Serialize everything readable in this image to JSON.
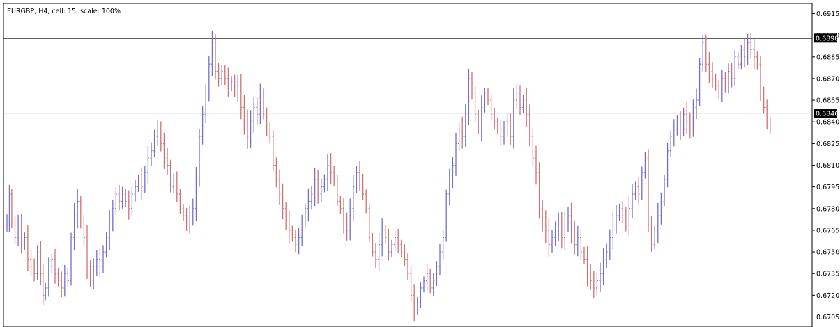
{
  "chart_data": {
    "type": "line",
    "title": "EURGBP, H4, cell: 15, scale: 100%",
    "ylim": [
      0.6698,
      0.6922
    ],
    "y_ticks": [
      "0.6915",
      "0.6900",
      "0.6885",
      "0.6870",
      "0.6855",
      "0.6840",
      "0.6825",
      "0.6810",
      "0.6795",
      "0.6780",
      "0.6765",
      "0.6750",
      "0.6735",
      "0.6720",
      "0.6705"
    ],
    "grid": false,
    "up_color": "#7070d0",
    "down_color": "#d07070",
    "horizontal_lines": [
      {
        "value": 0.6898,
        "label": "0.6898",
        "color": "#000000"
      },
      {
        "value": 0.6846,
        "label": "0.6846",
        "color": "#c0c0c0"
      }
    ],
    "series": [
      {
        "points": [
          [
            0,
            0.677
          ],
          [
            3,
            0.679
          ],
          [
            6,
            0.677
          ],
          [
            10,
            0.676
          ],
          [
            14,
            0.677
          ],
          [
            18,
            0.6755
          ],
          [
            22,
            0.676
          ],
          [
            26,
            0.6745
          ],
          [
            30,
            0.674
          ],
          [
            34,
            0.6735
          ],
          [
            38,
            0.675
          ],
          [
            42,
            0.6735
          ],
          [
            45,
            0.672
          ],
          [
            48,
            0.6725
          ],
          [
            52,
            0.674
          ],
          [
            56,
            0.6745
          ],
          [
            60,
            0.6735
          ],
          [
            64,
            0.673
          ],
          [
            68,
            0.6725
          ],
          [
            72,
            0.6735
          ],
          [
            76,
            0.673
          ],
          [
            80,
            0.676
          ],
          [
            84,
            0.6775
          ],
          [
            88,
            0.6785
          ],
          [
            92,
            0.677
          ],
          [
            96,
            0.676
          ],
          [
            100,
            0.674
          ],
          [
            104,
            0.673
          ],
          [
            108,
            0.674
          ],
          [
            112,
            0.6745
          ],
          [
            116,
            0.674
          ],
          [
            120,
            0.675
          ],
          [
            124,
            0.676
          ],
          [
            128,
            0.677
          ],
          [
            132,
            0.678
          ],
          [
            136,
            0.679
          ],
          [
            140,
            0.6785
          ],
          [
            144,
            0.679
          ],
          [
            148,
            0.6785
          ],
          [
            152,
            0.678
          ],
          [
            156,
            0.679
          ],
          [
            160,
            0.6795
          ],
          [
            164,
            0.68
          ],
          [
            168,
            0.6795
          ],
          [
            172,
            0.6805
          ],
          [
            176,
            0.6815
          ],
          [
            180,
            0.682
          ],
          [
            184,
            0.683
          ],
          [
            188,
            0.6835
          ],
          [
            192,
            0.6825
          ],
          [
            196,
            0.6815
          ],
          [
            200,
            0.681
          ],
          [
            204,
            0.6795
          ],
          [
            208,
            0.68
          ],
          [
            212,
            0.679
          ],
          [
            216,
            0.678
          ],
          [
            220,
            0.6775
          ],
          [
            224,
            0.677
          ],
          [
            228,
            0.6775
          ],
          [
            232,
            0.678
          ],
          [
            236,
            0.68
          ],
          [
            240,
            0.683
          ],
          [
            244,
            0.6845
          ],
          [
            248,
            0.686
          ],
          [
            252,
            0.688
          ],
          [
            256,
            0.6895
          ],
          [
            260,
            0.6875
          ],
          [
            264,
            0.687
          ],
          [
            268,
            0.6875
          ],
          [
            272,
            0.687
          ],
          [
            276,
            0.6865
          ],
          [
            280,
            0.6868
          ],
          [
            284,
            0.6862
          ],
          [
            288,
            0.6865
          ],
          [
            292,
            0.685
          ],
          [
            296,
            0.684
          ],
          [
            300,
            0.683
          ],
          [
            304,
            0.684
          ],
          [
            308,
            0.685
          ],
          [
            312,
            0.6845
          ],
          [
            316,
            0.686
          ],
          [
            320,
            0.6845
          ],
          [
            324,
            0.6835
          ],
          [
            328,
            0.683
          ],
          [
            332,
            0.681
          ],
          [
            336,
            0.68
          ],
          [
            340,
            0.679
          ],
          [
            344,
            0.678
          ],
          [
            348,
            0.677
          ],
          [
            352,
            0.6765
          ],
          [
            356,
            0.676
          ],
          [
            360,
            0.6755
          ],
          [
            364,
            0.676
          ],
          [
            368,
            0.677
          ],
          [
            372,
            0.678
          ],
          [
            376,
            0.6785
          ],
          [
            380,
            0.679
          ],
          [
            384,
            0.68
          ],
          [
            388,
            0.679
          ],
          [
            392,
            0.6795
          ],
          [
            396,
            0.68
          ],
          [
            400,
            0.681
          ],
          [
            404,
            0.6805
          ],
          [
            408,
            0.68
          ],
          [
            412,
            0.6785
          ],
          [
            416,
            0.678
          ],
          [
            420,
            0.677
          ],
          [
            424,
            0.6765
          ],
          [
            428,
            0.678
          ],
          [
            432,
            0.6795
          ],
          [
            436,
            0.6805
          ],
          [
            440,
            0.68
          ],
          [
            444,
            0.679
          ],
          [
            448,
            0.678
          ],
          [
            452,
            0.676
          ],
          [
            456,
            0.675
          ],
          [
            460,
            0.6745
          ],
          [
            464,
            0.6755
          ],
          [
            468,
            0.6765
          ],
          [
            472,
            0.676
          ],
          [
            476,
            0.675
          ],
          [
            480,
            0.6755
          ],
          [
            484,
            0.676
          ],
          [
            488,
            0.6755
          ],
          [
            492,
            0.675
          ],
          [
            496,
            0.6745
          ],
          [
            500,
            0.6735
          ],
          [
            504,
            0.672
          ],
          [
            508,
            0.671
          ],
          [
            512,
            0.6715
          ],
          [
            516,
            0.6725
          ],
          [
            520,
            0.673
          ],
          [
            524,
            0.6735
          ],
          [
            528,
            0.6725
          ],
          [
            532,
            0.673
          ],
          [
            536,
            0.674
          ],
          [
            540,
            0.675
          ],
          [
            544,
            0.676
          ],
          [
            548,
            0.679
          ],
          [
            552,
            0.68
          ],
          [
            556,
            0.681
          ],
          [
            560,
            0.6825
          ],
          [
            564,
            0.6835
          ],
          [
            568,
            0.683
          ],
          [
            572,
            0.6845
          ],
          [
            576,
            0.687
          ],
          [
            580,
            0.686
          ],
          [
            584,
            0.6845
          ],
          [
            588,
            0.6835
          ],
          [
            592,
            0.685
          ],
          [
            596,
            0.686
          ],
          [
            600,
            0.6855
          ],
          [
            604,
            0.6845
          ],
          [
            608,
            0.684
          ],
          [
            612,
            0.6835
          ],
          [
            616,
            0.683
          ],
          [
            620,
            0.6835
          ],
          [
            624,
            0.684
          ],
          [
            628,
            0.683
          ],
          [
            632,
            0.6855
          ],
          [
            636,
            0.686
          ],
          [
            640,
            0.685
          ],
          [
            644,
            0.6855
          ],
          [
            648,
            0.6845
          ],
          [
            652,
            0.683
          ],
          [
            656,
            0.6815
          ],
          [
            660,
            0.6805
          ],
          [
            664,
            0.678
          ],
          [
            668,
            0.677
          ],
          [
            672,
            0.6765
          ],
          [
            676,
            0.6755
          ],
          [
            680,
            0.676
          ],
          [
            684,
            0.6765
          ],
          [
            688,
            0.677
          ],
          [
            692,
            0.676
          ],
          [
            696,
            0.677
          ],
          [
            700,
            0.6775
          ],
          [
            704,
            0.6765
          ],
          [
            708,
            0.6755
          ],
          [
            712,
            0.676
          ],
          [
            716,
            0.675
          ],
          [
            720,
            0.6745
          ],
          [
            724,
            0.6735
          ],
          [
            728,
            0.673
          ],
          [
            732,
            0.6725
          ],
          [
            736,
            0.673
          ],
          [
            740,
            0.6735
          ],
          [
            744,
            0.6745
          ],
          [
            748,
            0.675
          ],
          [
            752,
            0.676
          ],
          [
            756,
            0.677
          ],
          [
            760,
            0.6775
          ],
          [
            764,
            0.678
          ],
          [
            768,
            0.6775
          ],
          [
            772,
            0.677
          ],
          [
            776,
            0.678
          ],
          [
            780,
            0.679
          ],
          [
            784,
            0.6795
          ],
          [
            788,
            0.679
          ],
          [
            792,
            0.6805
          ],
          [
            796,
            0.6815
          ],
          [
            800,
            0.677
          ],
          [
            804,
            0.6755
          ],
          [
            808,
            0.6765
          ],
          [
            812,
            0.6775
          ],
          [
            816,
            0.6785
          ],
          [
            820,
            0.68
          ],
          [
            824,
            0.682
          ],
          [
            828,
            0.683
          ],
          [
            832,
            0.6835
          ],
          [
            836,
            0.684
          ],
          [
            840,
            0.6835
          ],
          [
            844,
            0.6845
          ],
          [
            848,
            0.684
          ],
          [
            852,
            0.6835
          ],
          [
            856,
            0.685
          ],
          [
            860,
            0.6855
          ],
          [
            864,
            0.688
          ],
          [
            868,
            0.6895
          ],
          [
            872,
            0.688
          ],
          [
            876,
            0.6875
          ],
          [
            880,
            0.687
          ],
          [
            884,
            0.6865
          ],
          [
            888,
            0.686
          ],
          [
            892,
            0.687
          ],
          [
            896,
            0.6865
          ],
          [
            900,
            0.6875
          ],
          [
            904,
            0.687
          ],
          [
            908,
            0.6885
          ],
          [
            912,
            0.688
          ],
          [
            916,
            0.689
          ],
          [
            920,
            0.6885
          ],
          [
            924,
            0.6895
          ],
          [
            928,
            0.689
          ],
          [
            932,
            0.6885
          ],
          [
            936,
            0.688
          ],
          [
            940,
            0.686
          ],
          [
            944,
            0.685
          ],
          [
            948,
            0.684
          ],
          [
            952,
            0.6835
          ]
        ]
      }
    ]
  }
}
